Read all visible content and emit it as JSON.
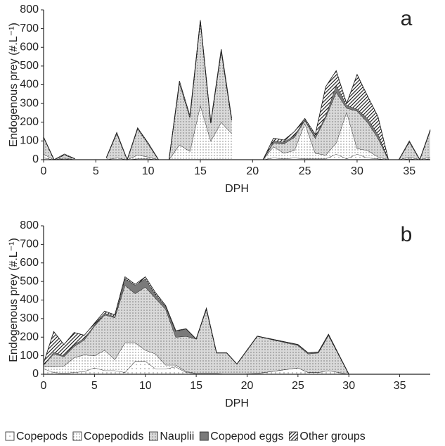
{
  "chart_data": [
    {
      "type": "stacked-area",
      "label": "a",
      "x_label": "DPH",
      "y_label": "Endogenous prey (#.L⁻¹)",
      "xlim": [
        0,
        37
      ],
      "xticks": [
        0,
        5,
        10,
        15,
        20,
        25,
        30,
        35
      ],
      "ylim": [
        0,
        800
      ],
      "yticks": [
        0,
        100,
        200,
        300,
        400,
        500,
        600,
        700,
        800
      ],
      "x": [
        0,
        1,
        2,
        3,
        4,
        5,
        6,
        7,
        8,
        9,
        10,
        11,
        12,
        13,
        14,
        15,
        16,
        17,
        18,
        19,
        20,
        21,
        22,
        23,
        24,
        25,
        26,
        27,
        28,
        29,
        30,
        31,
        32,
        33,
        34,
        35,
        36,
        37
      ],
      "series": [
        {
          "color": "#ffffff",
          "pattern": "dots-sparse",
          "values": [
            10,
            0,
            5,
            0,
            null,
            null,
            0,
            0,
            0,
            5,
            5,
            0,
            0,
            0,
            0,
            0,
            0,
            0,
            0,
            null,
            null,
            0,
            10,
            5,
            10,
            5,
            5,
            5,
            30,
            5,
            30,
            10,
            5,
            0,
            0,
            5,
            0,
            5
          ]
        },
        {
          "color": "#ffffff",
          "pattern": "dots",
          "values": [
            20,
            0,
            5,
            0,
            null,
            null,
            0,
            10,
            0,
            20,
            10,
            0,
            0,
            80,
            45,
            290,
            100,
            200,
            140,
            null,
            null,
            0,
            60,
            30,
            40,
            190,
            30,
            20,
            60,
            250,
            30,
            40,
            10,
            0,
            0,
            10,
            0,
            10
          ]
        },
        {
          "color": "#d9d9d9",
          "pattern": "dots",
          "values": [
            90,
            0,
            15,
            5,
            null,
            null,
            10,
            130,
            0,
            140,
            70,
            0,
            0,
            330,
            180,
            450,
            95,
            380,
            70,
            null,
            null,
            0,
            20,
            50,
            70,
            15,
            80,
            200,
            270,
            20,
            200,
            150,
            100,
            0,
            0,
            80,
            0,
            140
          ]
        },
        {
          "color": "#7a7a7a",
          "pattern": "solid",
          "values": [
            0,
            0,
            0,
            0,
            null,
            null,
            0,
            0,
            0,
            0,
            0,
            0,
            0,
            0,
            0,
            0,
            0,
            0,
            0,
            null,
            null,
            0,
            10,
            10,
            10,
            5,
            10,
            10,
            40,
            15,
            10,
            20,
            20,
            0,
            0,
            0,
            0,
            0
          ]
        },
        {
          "color": "#ffffff",
          "pattern": "hatch",
          "values": [
            0,
            0,
            5,
            0,
            null,
            null,
            0,
            5,
            0,
            5,
            5,
            0,
            0,
            10,
            10,
            5,
            5,
            10,
            10,
            null,
            null,
            0,
            15,
            10,
            20,
            5,
            10,
            155,
            75,
            10,
            185,
            120,
            95,
            0,
            0,
            5,
            0,
            5
          ]
        }
      ]
    },
    {
      "type": "stacked-area",
      "label": "b",
      "x_label": "DPH",
      "y_label": "Endogenous prey (#.L⁻¹)",
      "xlim": [
        0,
        38
      ],
      "xticks": [
        0,
        5,
        10,
        15,
        20,
        25,
        30,
        35
      ],
      "ylim": [
        0,
        800
      ],
      "yticks": [
        0,
        100,
        200,
        300,
        400,
        500,
        600,
        700,
        800
      ],
      "x": [
        0,
        1,
        2,
        3,
        4,
        5,
        6,
        7,
        8,
        9,
        10,
        11,
        12,
        13,
        14,
        15,
        16,
        17,
        18,
        19,
        21,
        25,
        26,
        27,
        28,
        30
      ],
      "series": [
        {
          "name": "Copepods",
          "color": "#ffffff",
          "pattern": "dots-sparse",
          "values": [
            30,
            10,
            5,
            10,
            15,
            35,
            20,
            20,
            10,
            70,
            70,
            30,
            30,
            40,
            10,
            5,
            5,
            5,
            0,
            0,
            5,
            35,
            10,
            10,
            20,
            0
          ]
        },
        {
          "name": "Copepodids",
          "color": "#ffffff",
          "pattern": "dots",
          "values": [
            10,
            30,
            40,
            80,
            90,
            65,
            110,
            60,
            160,
            100,
            60,
            80,
            20,
            10,
            5,
            0,
            0,
            0,
            0,
            0,
            0,
            0,
            0,
            0,
            0,
            0
          ]
        },
        {
          "name": "Nauplii",
          "color": "#d9d9d9",
          "pattern": "dots",
          "values": [
            10,
            70,
            50,
            60,
            80,
            160,
            190,
            225,
            310,
            265,
            340,
            300,
            300,
            150,
            190,
            185,
            345,
            110,
            115,
            55,
            200,
            120,
            100,
            105,
            190,
            0
          ]
        },
        {
          "name": "Copepod eggs",
          "color": "#7a7a7a",
          "pattern": "solid",
          "values": [
            0,
            10,
            5,
            10,
            10,
            5,
            10,
            5,
            35,
            45,
            45,
            20,
            15,
            30,
            40,
            0,
            5,
            0,
            0,
            0,
            0,
            5,
            5,
            5,
            5,
            0
          ]
        },
        {
          "name": "Other groups",
          "color": "#ffffff",
          "pattern": "hatch",
          "values": [
            10,
            110,
            60,
            65,
            15,
            10,
            10,
            10,
            10,
            5,
            10,
            10,
            5,
            5,
            0,
            0,
            0,
            0,
            0,
            0,
            0,
            0,
            0,
            0,
            0,
            0
          ]
        }
      ]
    }
  ]
}
